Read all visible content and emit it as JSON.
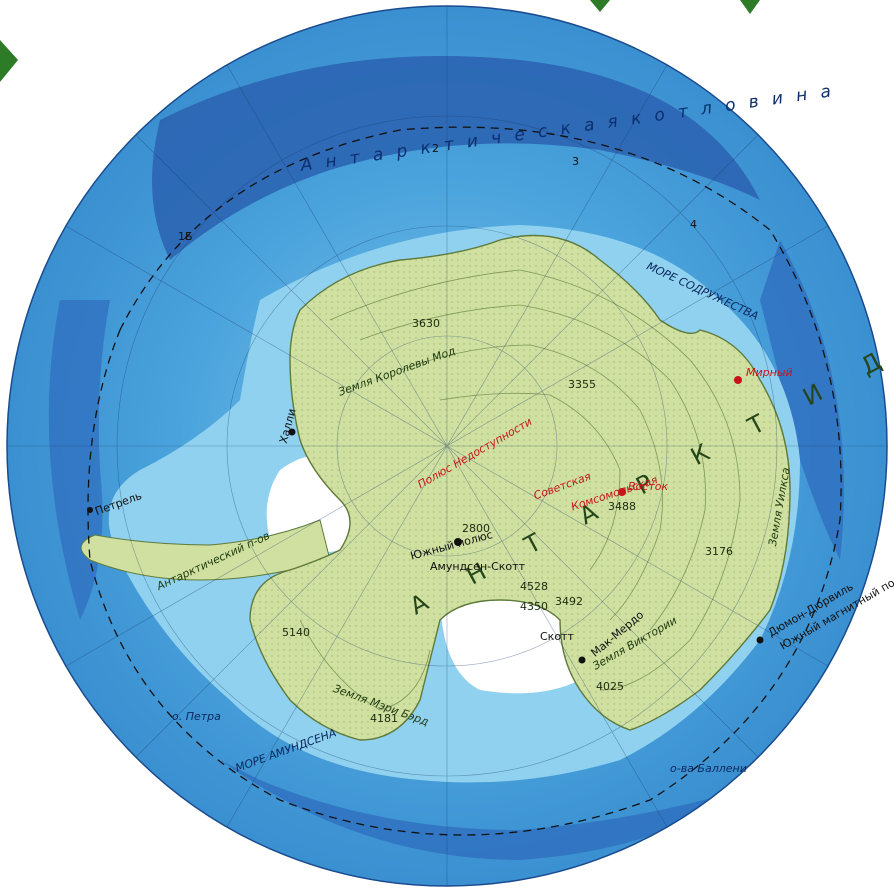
{
  "map": {
    "continent": "А Н Т А Р К Т И Д А",
    "sea_labels": {
      "basin": "А н т а р к т и ч е с к а я  к о т л о в и н а",
      "commonwealth_sea": "МОРЕ СОДРУЖЕСТВА",
      "amundsen_sea": "МОРЕ АМУНДСЕНА",
      "basin_num_2": "2",
      "basin_num_3": "3",
      "basin_num_4": "4",
      "bay_1b": "1Б"
    },
    "regions": {
      "queen_maud": "Земля Королевы Мод",
      "mary_byrd": "Земля Мэри Бэрд",
      "victoria": "Земля Виктории",
      "wilkes": "Земля Уилкса",
      "antarctic_peninsula": "Антарктический п-ов"
    },
    "poles": {
      "inaccessibility": "Полюс Недоступности",
      "south_pole": "Южный полюс",
      "south_magnetic": "Южный магнитный полюс"
    },
    "stations": {
      "amundsen_scott": "Амундсен-Скотт",
      "vostok": "Восток",
      "sovetskaya": "Советская",
      "komsomolskaya": "Комсомольская",
      "mirny": "Мирный",
      "dumont": "Дюмон-Дюрвиль",
      "mcmurdo": "Мак-Мердо",
      "scott": "Скотт",
      "halley": "Халли",
      "petrel": "Петрель"
    },
    "elevations": [
      "3630",
      "3355",
      "2800",
      "3488",
      "4528",
      "4350",
      "3492",
      "5140",
      "4181",
      "4025",
      "3176"
    ],
    "islands": {
      "peter": "о. Петра",
      "balleny": "о-ва Баллени"
    },
    "colors": {
      "deep_ocean": "#2f6fbf",
      "mid_ocean": "#3f93d2",
      "shelf": "#7ec8ec",
      "ice_shelf": "#ffffff",
      "land": "#cfe0a1",
      "contour": "#5f7a3a",
      "station_red": "#c8141c"
    }
  }
}
